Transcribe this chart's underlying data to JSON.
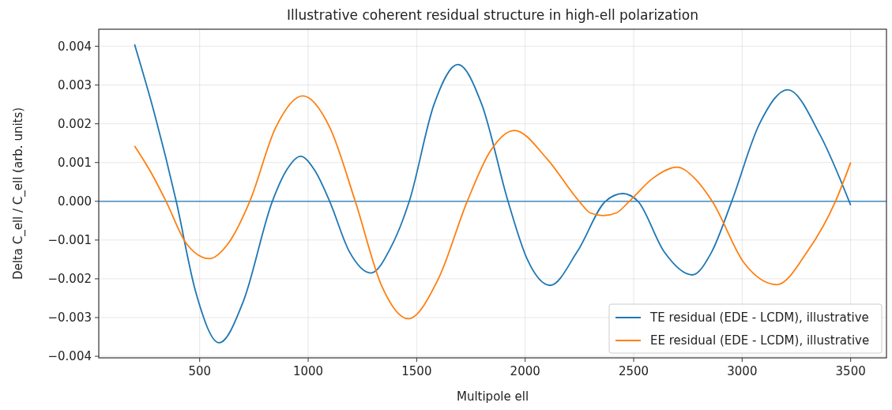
{
  "chart_data": {
    "type": "line",
    "title": "Illustrative coherent residual structure in high-ell polarization",
    "xlabel": "Multipole ell",
    "ylabel": "Delta C_ell / C_ell (arb. units)",
    "xlim": [
      35,
      3665
    ],
    "xticks": [
      500,
      1000,
      1500,
      2000,
      2500,
      3000,
      3500
    ],
    "ylim": [
      -0.00404,
      0.00444
    ],
    "yticks": [
      {
        "value": -0.004,
        "label": "−0.004"
      },
      {
        "value": -0.003,
        "label": "−0.003"
      },
      {
        "value": -0.002,
        "label": "−0.002"
      },
      {
        "value": -0.001,
        "label": "−0.001"
      },
      {
        "value": 0,
        "label": "0.000"
      },
      {
        "value": 0.001,
        "label": "0.001"
      },
      {
        "value": 0.002,
        "label": "0.002"
      },
      {
        "value": 0.003,
        "label": "0.003"
      },
      {
        "value": 0.004,
        "label": "0.004"
      }
    ],
    "grid": true,
    "legend": "bottom right",
    "line_style": "solid",
    "marker": "none",
    "ref_lines": [
      {
        "axis": "y",
        "value": 0,
        "color": "#1f77b4"
      }
    ],
    "series": [
      {
        "name": "TE residual (EDE - LCDM), illustrative",
        "color": "#1f77b4",
        "x": [
          200,
          290,
          392,
          480,
          590,
          700,
          835,
          900,
          965,
          1030,
          1099,
          1190,
          1290,
          1380,
          1466,
          1580,
          1690,
          1800,
          1921,
          2010,
          2115,
          2240,
          2370,
          2450,
          2520,
          2640,
          2770,
          2860,
          2952,
          3080,
          3210,
          3360,
          3500
        ],
        "values": [
          0.00405,
          0.0023,
          0,
          -0.0023,
          -0.00365,
          -0.0026,
          0,
          0.0008,
          0.00116,
          0.0008,
          0,
          -0.0013,
          -0.00185,
          -0.0012,
          0,
          0.0025,
          0.00353,
          0.0025,
          0,
          -0.0015,
          -0.00217,
          -0.0013,
          0,
          0.0002,
          0,
          -0.0013,
          -0.0019,
          -0.0013,
          0,
          0.002,
          0.00288,
          0.0017,
          -0.0001
        ]
      },
      {
        "name": "EE residual (EDE - LCDM), illustrative",
        "color": "#ff7f0e",
        "x": [
          200,
          270,
          345,
          440,
          545,
          630,
          731,
          850,
          975,
          1100,
          1217,
          1340,
          1460,
          1600,
          1733,
          1840,
          1950,
          2100,
          2249,
          2300,
          2360,
          2420,
          2480,
          2590,
          2700,
          2780,
          2862,
          3010,
          3160,
          3300,
          3430,
          3500
        ],
        "values": [
          0.00143,
          0.0008,
          0,
          -0.0011,
          -0.00148,
          -0.0011,
          0,
          0.0019,
          0.00272,
          0.0019,
          0,
          -0.0022,
          -0.00303,
          -0.002,
          0,
          0.0013,
          0.00183,
          0.0011,
          0,
          -0.0003,
          -0.00037,
          -0.0003,
          0,
          0.0006,
          0.00088,
          0.0006,
          0,
          -0.0016,
          -0.00215,
          -0.0013,
          0,
          0.001
        ]
      }
    ]
  }
}
